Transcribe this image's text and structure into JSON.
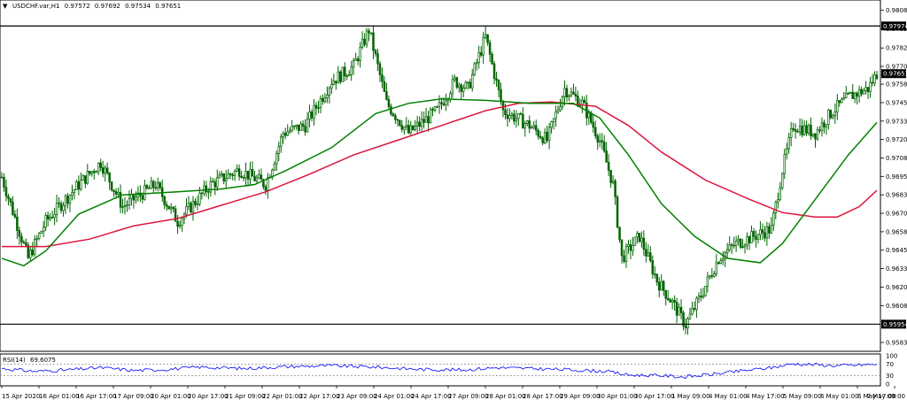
{
  "header": {
    "symbol": "USDCHF.var,H1",
    "open": "0.97572",
    "high": "0.97692",
    "low": "0.97534",
    "close": "0.97651"
  },
  "rsi_header": {
    "label": "RSI(14)",
    "value": "69.6075"
  },
  "colors": {
    "candle": "#006400",
    "ma_fast": "#008000",
    "ma_slow": "#dc143c",
    "rsi_line": "#0000ff",
    "hline": "#000000",
    "label_bg": "#000000",
    "label_fg": "#ffffff"
  },
  "chart_data": [
    {
      "type": "candlestick",
      "title": "USDCHF.var,H1",
      "ylim": [
        0.9577,
        0.9815
      ],
      "yticks": [
        "0.98080",
        "0.97955",
        "0.97825",
        "0.97700",
        "0.97580",
        "0.97455",
        "0.97330",
        "0.97205",
        "0.97080",
        "0.96955",
        "0.96830",
        "0.96705",
        "0.96580",
        "0.96455",
        "0.96330",
        "0.96205",
        "0.96080",
        "0.95830"
      ],
      "xticks": [
        "15 Apr 2020",
        "16 Apr 01:00",
        "16 Apr 17:00",
        "17 Apr 09:00",
        "20 Apr 01:00",
        "20 Apr 17:00",
        "21 Apr 09:00",
        "22 Apr 01:00",
        "22 Apr 17:00",
        "23 Apr 09:00",
        "24 Apr 01:00",
        "24 Apr 17:00",
        "27 Apr 09:00",
        "28 Apr 01:00",
        "28 Apr 17:00",
        "29 Apr 09:00",
        "30 Apr 01:00",
        "30 Apr 17:00",
        "1 May 09:00",
        "4 May 01:00",
        "4 May 17:00",
        "5 May 09:00",
        "6 May 01:00",
        "6 May 17:00",
        "7 May 09:00"
      ],
      "hlines": [
        {
          "label": "0.97974",
          "value": 0.97974
        },
        {
          "label": "0.95954",
          "value": 0.95954
        }
      ],
      "current_price": {
        "label": "0.97651",
        "value": 0.97651
      },
      "anchors": [
        [
          0,
          0.9695
        ],
        [
          12,
          0.964
        ],
        [
          20,
          0.9665
        ],
        [
          35,
          0.969
        ],
        [
          45,
          0.9705
        ],
        [
          55,
          0.9675
        ],
        [
          70,
          0.969
        ],
        [
          80,
          0.9665
        ],
        [
          95,
          0.969
        ],
        [
          108,
          0.97
        ],
        [
          120,
          0.969
        ],
        [
          128,
          0.9725
        ],
        [
          138,
          0.973
        ],
        [
          150,
          0.976
        ],
        [
          160,
          0.977
        ],
        [
          167,
          0.9795
        ],
        [
          175,
          0.9745
        ],
        [
          185,
          0.9725
        ],
        [
          198,
          0.974
        ],
        [
          206,
          0.976
        ],
        [
          212,
          0.9755
        ],
        [
          220,
          0.979
        ],
        [
          228,
          0.974
        ],
        [
          240,
          0.973
        ],
        [
          248,
          0.972
        ],
        [
          256,
          0.9755
        ],
        [
          264,
          0.9745
        ],
        [
          272,
          0.972
        ],
        [
          278,
          0.969
        ],
        [
          282,
          0.964
        ],
        [
          290,
          0.9655
        ],
        [
          298,
          0.9625
        ],
        [
          305,
          0.961
        ],
        [
          311,
          0.9595
        ],
        [
          318,
          0.9615
        ],
        [
          326,
          0.964
        ],
        [
          334,
          0.965
        ],
        [
          342,
          0.9655
        ],
        [
          350,
          0.966
        ],
        [
          355,
          0.97
        ],
        [
          360,
          0.973
        ],
        [
          370,
          0.9725
        ],
        [
          378,
          0.974
        ],
        [
          386,
          0.975
        ],
        [
          394,
          0.9755
        ],
        [
          398,
          0.9765
        ]
      ],
      "ma_fast_points": [
        [
          0,
          0.964
        ],
        [
          10,
          0.9635
        ],
        [
          20,
          0.9645
        ],
        [
          35,
          0.967
        ],
        [
          55,
          0.9683
        ],
        [
          80,
          0.9685
        ],
        [
          100,
          0.9687
        ],
        [
          115,
          0.969
        ],
        [
          130,
          0.97
        ],
        [
          150,
          0.9715
        ],
        [
          170,
          0.9738
        ],
        [
          185,
          0.9745
        ],
        [
          200,
          0.9748
        ],
        [
          220,
          0.9747
        ],
        [
          240,
          0.9745
        ],
        [
          260,
          0.9745
        ],
        [
          272,
          0.9735
        ],
        [
          285,
          0.971
        ],
        [
          300,
          0.9677
        ],
        [
          315,
          0.9655
        ],
        [
          330,
          0.964
        ],
        [
          345,
          0.9637
        ],
        [
          355,
          0.965
        ],
        [
          370,
          0.968
        ],
        [
          385,
          0.971
        ],
        [
          398,
          0.9732
        ]
      ],
      "ma_slow_points": [
        [
          0,
          0.9648
        ],
        [
          20,
          0.9648
        ],
        [
          40,
          0.9653
        ],
        [
          60,
          0.9662
        ],
        [
          80,
          0.9667
        ],
        [
          100,
          0.9676
        ],
        [
          120,
          0.9685
        ],
        [
          140,
          0.9697
        ],
        [
          160,
          0.971
        ],
        [
          180,
          0.972
        ],
        [
          200,
          0.973
        ],
        [
          220,
          0.974
        ],
        [
          235,
          0.9745
        ],
        [
          250,
          0.9746
        ],
        [
          270,
          0.9743
        ],
        [
          285,
          0.973
        ],
        [
          300,
          0.9712
        ],
        [
          320,
          0.9693
        ],
        [
          340,
          0.968
        ],
        [
          355,
          0.9671
        ],
        [
          370,
          0.9668
        ],
        [
          380,
          0.9668
        ],
        [
          390,
          0.9675
        ],
        [
          398,
          0.9686
        ]
      ]
    },
    {
      "type": "line",
      "title": "RSI(14) 69.6075",
      "ylim": [
        0,
        100
      ],
      "yticks": [
        "100",
        "70",
        "30",
        "0"
      ],
      "levels": [
        70,
        30
      ],
      "points": [
        [
          0,
          55
        ],
        [
          15,
          45
        ],
        [
          30,
          50
        ],
        [
          45,
          58
        ],
        [
          60,
          48
        ],
        [
          75,
          52
        ],
        [
          90,
          60
        ],
        [
          110,
          55
        ],
        [
          130,
          62
        ],
        [
          150,
          65
        ],
        [
          170,
          60
        ],
        [
          190,
          52
        ],
        [
          210,
          50
        ],
        [
          225,
          58
        ],
        [
          240,
          55
        ],
        [
          260,
          50
        ],
        [
          275,
          45
        ],
        [
          285,
          32
        ],
        [
          300,
          30
        ],
        [
          310,
          25
        ],
        [
          320,
          32
        ],
        [
          335,
          45
        ],
        [
          350,
          58
        ],
        [
          360,
          72
        ],
        [
          380,
          65
        ],
        [
          398,
          69.6
        ]
      ]
    }
  ]
}
